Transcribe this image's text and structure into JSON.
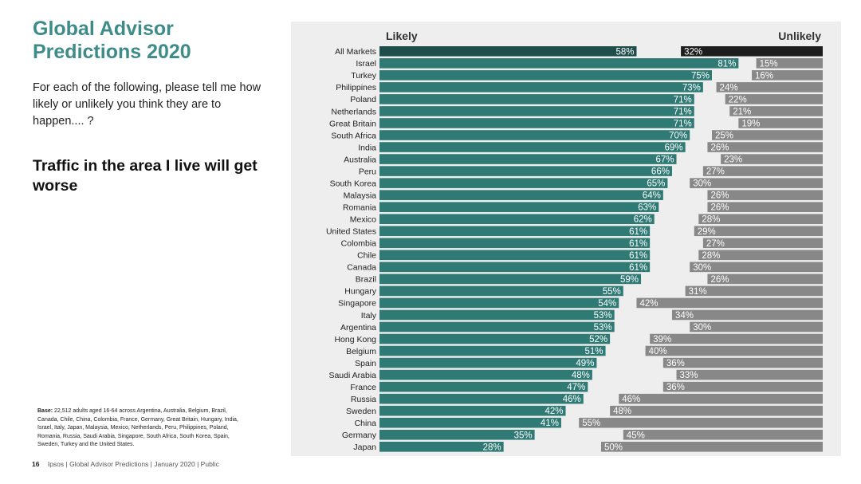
{
  "slide": {
    "title": "Global Advisor Predictions 2020",
    "question": "For each of the following, please tell me how likely or unlikely you think they are to happen.... ?",
    "topic": "Traffic in the area I live will get worse",
    "base_label": "Base:",
    "base_text": "22,512 adults aged 16-64 across Argentina, Australia, Belgium, Brazil, Canada, Chile, China, Colombia, France, Germany, Great Britain, Hungary, India, Israel, Italy, Japan, Malaysia, Mexico, Netherlands, Peru, Philippines, Poland, Romania, Russia, Saudi Arabia, Singapore, South Africa, South Korea, Spain, Sweden, Turkey and the United States.",
    "page_number": "16",
    "footer_text": "Ipsos | Global Advisor Predictions | January 2020 | Public"
  },
  "colors": {
    "likely": "#2f7a74",
    "unlikely": "#888888",
    "all_markets_likely": "#1f4d4a",
    "all_markets_unlikely": "#1e1e1e",
    "title": "#3e8c89",
    "panel": "#eeeeee"
  },
  "chart_data": {
    "type": "bar",
    "orientation": "horizontal-diverging",
    "likely_label": "Likely",
    "unlikely_label": "Unlikely",
    "unit": "%",
    "categories": [
      "All Markets",
      "Israel",
      "Turkey",
      "Philippines",
      "Poland",
      "Netherlands",
      "Great Britain",
      "South Africa",
      "India",
      "Australia",
      "Peru",
      "South Korea",
      "Malaysia",
      "Romania",
      "Mexico",
      "United States",
      "Colombia",
      "Chile",
      "Canada",
      "Brazil",
      "Hungary",
      "Singapore",
      "Italy",
      "Argentina",
      "Hong Kong",
      "Belgium",
      "Spain",
      "Saudi Arabia",
      "France",
      "Russia",
      "Sweden",
      "China",
      "Germany",
      "Japan"
    ],
    "series": [
      {
        "name": "Likely",
        "values": [
          58,
          81,
          75,
          73,
          71,
          71,
          71,
          70,
          69,
          67,
          66,
          65,
          64,
          63,
          62,
          61,
          61,
          61,
          61,
          59,
          55,
          54,
          53,
          53,
          52,
          51,
          49,
          48,
          47,
          46,
          42,
          41,
          35,
          28
        ]
      },
      {
        "name": "Unlikely",
        "values": [
          32,
          15,
          16,
          24,
          22,
          21,
          19,
          25,
          26,
          23,
          27,
          30,
          26,
          26,
          28,
          29,
          27,
          28,
          30,
          26,
          31,
          42,
          34,
          30,
          39,
          40,
          36,
          33,
          36,
          46,
          48,
          55,
          45,
          50
        ]
      }
    ],
    "xlim": [
      0,
      100
    ]
  }
}
